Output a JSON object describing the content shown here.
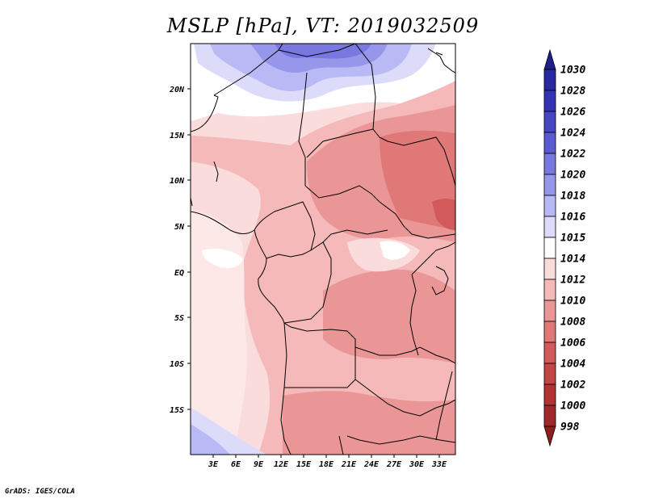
{
  "title": "MSLP [hPa], VT: 2019032509",
  "credit": "GrADS: IGES/COLA",
  "lat_ticks": [
    "20N",
    "15N",
    "10N",
    "5N",
    "EQ",
    "5S",
    "10S",
    "15S"
  ],
  "lon_ticks": [
    "3E",
    "6E",
    "9E",
    "12E",
    "15E",
    "18E",
    "21E",
    "24E",
    "27E",
    "30E",
    "33E"
  ],
  "colorbar": {
    "labels": [
      "1030",
      "1028",
      "1026",
      "1024",
      "1022",
      "1020",
      "1018",
      "1016",
      "1015",
      "1014",
      "1012",
      "1010",
      "1008",
      "1006",
      "1004",
      "1002",
      "1000",
      "998"
    ],
    "colors": [
      "#1e1e8c",
      "#2828a0",
      "#3232b4",
      "#4646c3",
      "#5a5ad2",
      "#7878e0",
      "#9696eb",
      "#b9b9f5",
      "#dcdcfa",
      "#ffffff",
      "#fadcdc",
      "#f5b9b9",
      "#eb9696",
      "#e07878",
      "#d25a5a",
      "#c34646",
      "#b43232",
      "#a02828",
      "#8c1e1e"
    ]
  }
}
